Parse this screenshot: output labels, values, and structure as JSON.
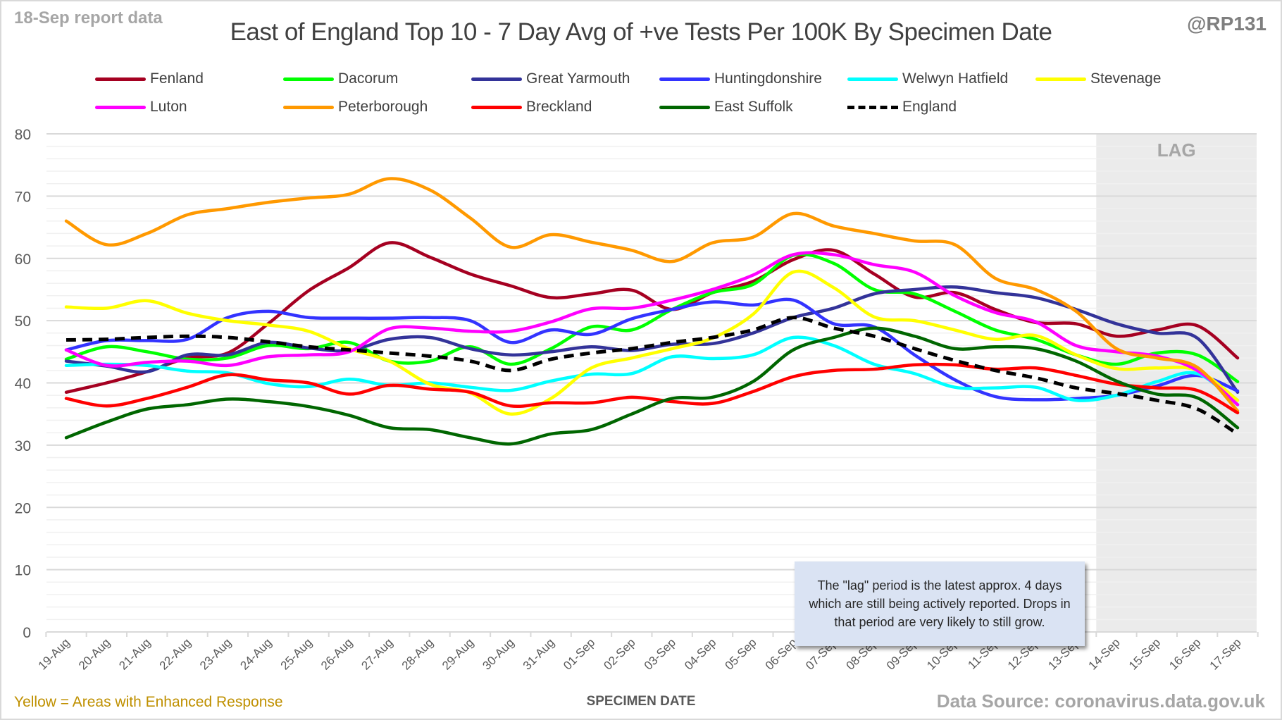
{
  "header": {
    "report_date": "18-Sep report data",
    "handle": "@RP131"
  },
  "footer": {
    "enhanced_note": "Yellow = Areas with Enhanced Response",
    "source": "Data Source: coronavirus.data.gov.uk"
  },
  "annotation": "The \"lag\" period is the latest approx. 4 days which are still being actively reported.  Drops in that period are very likely to still grow.",
  "chart_data": {
    "type": "line",
    "title": "East of England Top 10 - 7 Day Avg of +ve Tests Per 100K By Specimen Date",
    "xlabel": "SPECIMEN DATE",
    "ylabel": "",
    "ylim": [
      0,
      80
    ],
    "yticks": [
      0,
      10,
      20,
      30,
      40,
      50,
      60,
      70,
      80
    ],
    "grid": true,
    "legend_position": "top",
    "lag_region": {
      "label": "LAG",
      "from": "14-Sep",
      "to": "17-Sep"
    },
    "x": [
      "19-Aug",
      "20-Aug",
      "21-Aug",
      "22-Aug",
      "23-Aug",
      "24-Aug",
      "25-Aug",
      "26-Aug",
      "27-Aug",
      "28-Aug",
      "29-Aug",
      "30-Aug",
      "31-Aug",
      "01-Sep",
      "02-Sep",
      "03-Sep",
      "04-Sep",
      "05-Sep",
      "06-Sep",
      "07-Sep",
      "08-Sep",
      "09-Sep",
      "10-Sep",
      "11-Sep",
      "12-Sep",
      "13-Sep",
      "14-Sep",
      "15-Sep",
      "16-Sep",
      "17-Sep"
    ],
    "series": [
      {
        "name": "Fenland",
        "color": "#a50021",
        "dash": false,
        "values": [
          38.5,
          40.0,
          41.8,
          44.0,
          44.8,
          49.5,
          54.8,
          58.5,
          62.5,
          60.2,
          57.5,
          55.6,
          53.7,
          54.3,
          54.9,
          51.8,
          54.5,
          56.3,
          59.8,
          61.3,
          57.5,
          53.8,
          54.5,
          51.8,
          49.7,
          49.5,
          47.5,
          48.5,
          49.2,
          44.0
        ]
      },
      {
        "name": "Dacorum",
        "color": "#00ff00",
        "dash": false,
        "values": [
          43.8,
          45.8,
          45.0,
          43.8,
          44.0,
          46.0,
          45.5,
          46.5,
          43.5,
          43.5,
          45.8,
          43.0,
          45.5,
          49.0,
          48.5,
          51.8,
          54.5,
          55.8,
          60.5,
          59.2,
          55.0,
          54.3,
          51.5,
          48.5,
          47.0,
          44.5,
          43.0,
          44.8,
          44.5,
          40.2
        ]
      },
      {
        "name": "Great Yarmouth",
        "color": "#333399",
        "dash": false,
        "values": [
          43.5,
          42.7,
          41.8,
          44.5,
          44.5,
          46.5,
          45.6,
          45.2,
          47.0,
          47.3,
          45.5,
          44.5,
          45.0,
          45.8,
          45.2,
          46.2,
          46.3,
          48.0,
          50.5,
          52.0,
          54.3,
          55.0,
          55.4,
          54.5,
          53.7,
          51.8,
          49.5,
          48.0,
          47.2,
          38.5
        ]
      },
      {
        "name": "Huntingdonshire",
        "color": "#3333ff",
        "dash": false,
        "values": [
          45.3,
          46.8,
          46.8,
          47.0,
          50.5,
          51.5,
          50.5,
          50.4,
          50.4,
          50.5,
          50.0,
          46.5,
          48.5,
          47.8,
          50.3,
          51.8,
          53.0,
          52.5,
          53.3,
          49.5,
          49.0,
          44.5,
          40.5,
          37.8,
          37.3,
          37.5,
          38.0,
          39.5,
          41.2,
          38.7
        ]
      },
      {
        "name": "Welwyn Hatfield",
        "color": "#00ffff",
        "dash": false,
        "values": [
          42.8,
          43.0,
          42.8,
          41.9,
          41.6,
          39.9,
          39.4,
          40.6,
          39.6,
          40.0,
          39.3,
          38.8,
          40.3,
          41.4,
          41.5,
          44.2,
          43.9,
          44.5,
          47.3,
          46.0,
          43.0,
          41.5,
          39.3,
          39.2,
          39.3,
          37.2,
          38.0,
          40.2,
          41.5,
          36.5
        ]
      },
      {
        "name": "Stevenage",
        "color": "#ffff00",
        "dash": false,
        "values": [
          52.2,
          52.0,
          53.2,
          51.2,
          50.0,
          49.3,
          48.3,
          45.5,
          43.5,
          39.8,
          38.4,
          35.0,
          37.5,
          42.4,
          44.0,
          45.5,
          47.2,
          51.0,
          57.8,
          55.3,
          50.6,
          50.0,
          48.5,
          47.0,
          47.6,
          44.5,
          42.3,
          42.4,
          42.0,
          37.2
        ]
      },
      {
        "name": "Luton",
        "color": "#ff00ff",
        "dash": false,
        "values": [
          45.3,
          42.8,
          43.3,
          43.5,
          42.8,
          44.2,
          44.5,
          45.0,
          48.7,
          48.8,
          48.3,
          48.3,
          49.8,
          51.9,
          52.0,
          53.3,
          55.0,
          57.3,
          60.6,
          60.6,
          59.0,
          57.8,
          54.0,
          51.3,
          49.8,
          46.0,
          45.0,
          44.3,
          42.0,
          36.5
        ]
      },
      {
        "name": "Peterborough",
        "color": "#ff9900",
        "dash": false,
        "values": [
          66.0,
          62.2,
          64.0,
          67.0,
          68.0,
          69.0,
          69.7,
          70.3,
          72.8,
          71.0,
          66.5,
          61.8,
          63.8,
          62.6,
          61.3,
          59.5,
          62.5,
          63.4,
          67.2,
          65.2,
          64.0,
          62.8,
          62.2,
          56.8,
          55.0,
          51.5,
          45.5,
          44.0,
          42.5,
          35.5
        ]
      },
      {
        "name": "Breckland",
        "color": "#ff0000",
        "dash": false,
        "values": [
          37.5,
          36.3,
          37.5,
          39.3,
          41.3,
          40.5,
          40.0,
          38.2,
          39.6,
          39.0,
          38.5,
          36.3,
          36.8,
          36.8,
          37.7,
          37.0,
          36.7,
          38.6,
          41.0,
          42.0,
          42.2,
          42.9,
          42.9,
          42.2,
          42.4,
          41.2,
          39.8,
          39.2,
          38.8,
          35.2
        ]
      },
      {
        "name": "East Suffolk",
        "color": "#006600",
        "dash": false,
        "values": [
          31.2,
          33.7,
          35.8,
          36.5,
          37.4,
          37.0,
          36.2,
          34.8,
          32.8,
          32.5,
          31.2,
          30.2,
          31.8,
          32.5,
          35.0,
          37.5,
          37.7,
          40.2,
          45.3,
          47.3,
          48.8,
          47.5,
          45.5,
          45.8,
          45.5,
          43.5,
          40.3,
          38.2,
          37.6,
          32.8
        ]
      },
      {
        "name": "England",
        "color": "#000000",
        "dash": true,
        "values": [
          46.9,
          47.0,
          47.3,
          47.5,
          47.3,
          46.6,
          45.8,
          45.3,
          44.8,
          44.3,
          43.5,
          42.0,
          43.8,
          44.8,
          45.5,
          46.5,
          47.3,
          48.5,
          50.5,
          48.8,
          47.5,
          45.5,
          43.6,
          42.0,
          40.8,
          39.2,
          38.3,
          37.2,
          35.8,
          31.8
        ]
      }
    ]
  }
}
